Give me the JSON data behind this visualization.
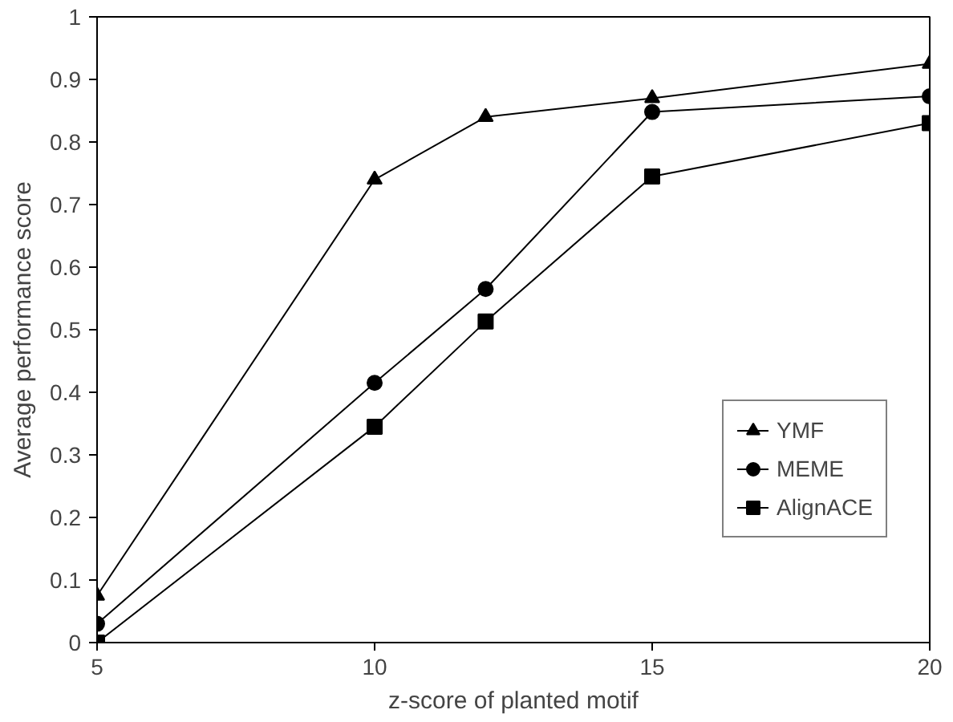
{
  "chart_data": {
    "type": "line",
    "xlabel": "z-score of planted motif",
    "ylabel": "Average performance score",
    "x": [
      5,
      10,
      12,
      15,
      20
    ],
    "series": [
      {
        "name": "YMF",
        "color": "#000000",
        "marker": "triangle",
        "values": [
          0.075,
          0.74,
          0.84,
          0.87,
          0.925
        ]
      },
      {
        "name": "MEME",
        "color": "#000000",
        "marker": "circle",
        "values": [
          0.03,
          0.415,
          0.565,
          0.848,
          0.873
        ]
      },
      {
        "name": "AlignACE",
        "color": "#000000",
        "marker": "square",
        "values": [
          0.0,
          0.345,
          0.513,
          0.745,
          0.83
        ]
      }
    ],
    "xlim": [
      5,
      20
    ],
    "ylim": [
      0,
      1
    ],
    "xticks": [
      5,
      10,
      15,
      20
    ],
    "yticks": [
      0,
      0.1,
      0.2,
      0.3,
      0.4,
      0.5,
      0.6,
      0.7,
      0.8,
      0.9,
      1
    ],
    "grid": false,
    "legend": "bottom right",
    "line_style": "solid"
  }
}
